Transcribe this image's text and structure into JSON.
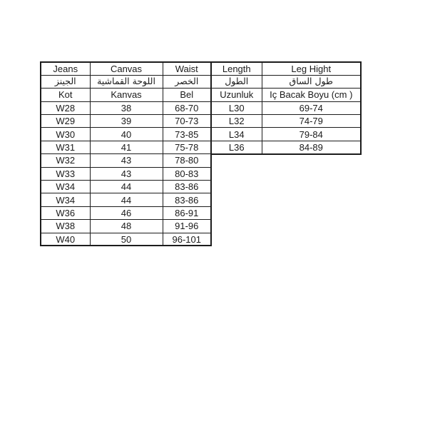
{
  "page": {
    "background": "#ffffff",
    "border_color": "#1c1c1c",
    "text_color": "#1a1a1a"
  },
  "size_chart": {
    "jeans_table": {
      "header_en": [
        "Jeans",
        "Canvas",
        "Waist"
      ],
      "header_ar": [
        "الجينز",
        "اللوحة القماشية",
        "الخصر"
      ],
      "header_tr": [
        "Kot",
        "Kanvas",
        "Bel"
      ],
      "rows": [
        [
          "W28",
          "38",
          "68-70"
        ],
        [
          "W29",
          "39",
          "70-73"
        ],
        [
          "W30",
          "40",
          "73-85"
        ],
        [
          "W31",
          "41",
          "75-78"
        ],
        [
          "W32",
          "43",
          "78-80"
        ],
        [
          "W33",
          "43",
          "80-83"
        ],
        [
          "W34",
          "44",
          "83-86"
        ],
        [
          "W34",
          "44",
          "83-86"
        ],
        [
          "W36",
          "46",
          "86-91"
        ],
        [
          "W38",
          "48",
          "91-96"
        ],
        [
          "W40",
          "50",
          "96-101"
        ]
      ]
    },
    "length_table": {
      "header_en": [
        "Length",
        "Leg Hight"
      ],
      "header_ar": [
        "الطول",
        "طول الساق"
      ],
      "header_tr": [
        "Uzunluk",
        "Iç Bacak Boyu (cm )"
      ],
      "rows": [
        [
          "L30",
          "69-74"
        ],
        [
          "L32",
          "74-79"
        ],
        [
          "L34",
          "79-84"
        ],
        [
          "L36",
          "84-89"
        ]
      ]
    }
  }
}
